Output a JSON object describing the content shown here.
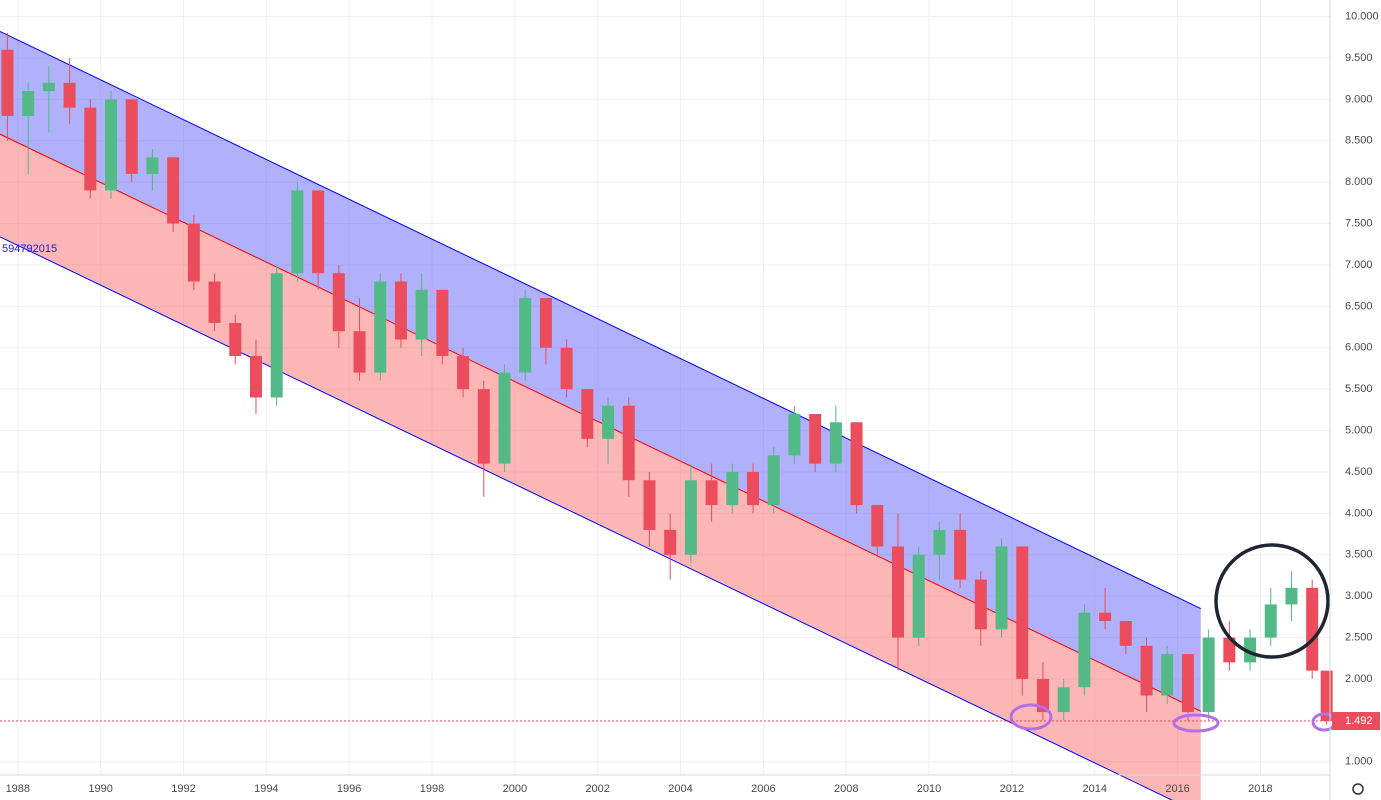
{
  "chart_data": {
    "type": "candlestick",
    "x": [
      1987.75,
      1988.25,
      1988.75,
      1989.25,
      1989.75,
      1990.25,
      1990.75,
      1991.25,
      1991.75,
      1992.25,
      1992.75,
      1993.25,
      1993.75,
      1994.25,
      1994.75,
      1995.25,
      1995.75,
      1996.25,
      1996.75,
      1997.25,
      1997.75,
      1998.25,
      1998.75,
      1999.25,
      1999.75,
      2000.25,
      2000.75,
      2001.25,
      2001.75,
      2002.25,
      2002.75,
      2003.25,
      2003.75,
      2004.25,
      2004.75,
      2005.25,
      2005.75,
      2006.25,
      2006.75,
      2007.25,
      2007.75,
      2008.25,
      2008.75,
      2009.25,
      2009.75,
      2010.25,
      2010.75,
      2011.25,
      2011.75,
      2012.25,
      2012.75,
      2013.25,
      2013.75,
      2014.25,
      2014.75,
      2015.25,
      2015.75,
      2016.25,
      2016.75,
      2017.25,
      2017.75,
      2018.25,
      2018.75,
      2019.25,
      2019.6
    ],
    "open": [
      9.6,
      8.8,
      9.1,
      9.2,
      8.9,
      7.9,
      9.0,
      8.1,
      8.3,
      7.5,
      6.8,
      6.3,
      5.9,
      5.4,
      6.9,
      7.9,
      6.9,
      6.2,
      5.7,
      6.8,
      6.1,
      6.7,
      5.9,
      5.5,
      4.6,
      5.7,
      6.6,
      6.0,
      5.5,
      4.9,
      5.3,
      4.4,
      3.8,
      3.5,
      4.4,
      4.1,
      4.5,
      4.1,
      4.7,
      5.2,
      4.6,
      5.1,
      4.1,
      3.6,
      2.5,
      3.5,
      3.8,
      3.2,
      2.6,
      3.6,
      2.0,
      1.6,
      1.9,
      2.8,
      2.7,
      2.4,
      1.8,
      2.3,
      1.6,
      2.5,
      2.2,
      2.5,
      2.9,
      3.1,
      2.1
    ],
    "high": [
      9.8,
      9.2,
      9.4,
      9.5,
      9.0,
      9.1,
      9.0,
      8.4,
      8.3,
      7.6,
      6.9,
      6.4,
      6.1,
      7.0,
      8.0,
      7.9,
      7.0,
      6.6,
      6.9,
      6.9,
      6.9,
      6.7,
      6.0,
      5.6,
      5.8,
      6.7,
      6.6,
      6.1,
      5.5,
      5.4,
      5.4,
      4.5,
      4.0,
      4.6,
      4.6,
      4.6,
      4.6,
      4.8,
      5.3,
      5.2,
      5.3,
      5.1,
      4.1,
      4.0,
      3.6,
      3.9,
      4.0,
      3.3,
      3.7,
      3.6,
      2.2,
      2.0,
      2.9,
      3.1,
      2.7,
      2.5,
      2.4,
      2.3,
      2.6,
      2.7,
      2.6,
      3.1,
      3.3,
      3.2,
      2.1
    ],
    "low": [
      8.5,
      8.1,
      8.6,
      8.7,
      7.8,
      7.8,
      8.0,
      7.9,
      7.4,
      6.7,
      6.2,
      5.8,
      5.2,
      5.3,
      6.8,
      6.7,
      6.0,
      5.6,
      5.6,
      6.0,
      5.9,
      5.8,
      5.4,
      4.2,
      4.5,
      5.6,
      5.8,
      5.4,
      4.8,
      4.6,
      4.2,
      3.6,
      3.2,
      3.4,
      3.9,
      4.0,
      4.0,
      4.0,
      4.6,
      4.5,
      4.5,
      4.0,
      3.5,
      2.1,
      2.4,
      3.2,
      3.1,
      2.4,
      2.5,
      1.8,
      1.5,
      1.5,
      1.8,
      2.6,
      2.3,
      1.6,
      1.7,
      1.5,
      1.5,
      2.1,
      2.1,
      2.4,
      2.7,
      2.0,
      1.45
    ],
    "close": [
      8.8,
      9.1,
      9.2,
      8.9,
      7.9,
      9.0,
      8.1,
      8.3,
      7.5,
      6.8,
      6.3,
      5.9,
      5.4,
      6.9,
      7.9,
      6.9,
      6.2,
      5.7,
      6.8,
      6.1,
      6.7,
      5.9,
      5.5,
      4.6,
      5.7,
      6.6,
      6.0,
      5.5,
      4.9,
      5.3,
      4.4,
      3.8,
      3.5,
      4.4,
      4.1,
      4.5,
      4.1,
      4.7,
      5.2,
      4.6,
      5.1,
      4.1,
      3.6,
      2.5,
      3.5,
      3.8,
      3.2,
      2.6,
      3.6,
      2.0,
      1.6,
      1.9,
      2.8,
      2.7,
      2.4,
      1.8,
      2.3,
      1.6,
      2.5,
      2.2,
      2.5,
      2.9,
      3.1,
      2.1,
      1.492
    ],
    "up_color": "#53b987",
    "down_color": "#eb4d5c",
    "xlim": [
      1987.57,
      2019.68
    ],
    "xticks": [
      1988,
      1990,
      1992,
      1994,
      1996,
      1998,
      2000,
      2002,
      2004,
      2006,
      2008,
      2010,
      2012,
      2014,
      2016,
      2018
    ],
    "ylim": [
      0.84,
      10.2
    ],
    "yticks": [
      {
        "value": 1,
        "label": "1.000"
      },
      {
        "value": 1.5,
        "label": "1.500"
      },
      {
        "value": 2,
        "label": "2.000"
      },
      {
        "value": 2.5,
        "label": "2.500"
      },
      {
        "value": 3,
        "label": "3.000"
      },
      {
        "value": 3.5,
        "label": "3.500"
      },
      {
        "value": 4,
        "label": "4.000"
      },
      {
        "value": 4.5,
        "label": "4.500"
      },
      {
        "value": 5,
        "label": "5.000"
      },
      {
        "value": 5.5,
        "label": "5.500"
      },
      {
        "value": 6,
        "label": "6.000"
      },
      {
        "value": 6.5,
        "label": "6.500"
      },
      {
        "value": 7,
        "label": "7.000"
      },
      {
        "value": 7.5,
        "label": "7.500"
      },
      {
        "value": 8,
        "label": "8.000"
      },
      {
        "value": 8.5,
        "label": "8.500"
      },
      {
        "value": 9,
        "label": "9.000"
      },
      {
        "value": 9.5,
        "label": "9.500"
      },
      {
        "value": 10,
        "label": "10.000"
      }
    ],
    "grid": true,
    "channel": {
      "x": [
        1987.57,
        2016.56
      ],
      "upper": [
        9.82,
        2.85
      ],
      "middle": [
        8.58,
        1.61
      ],
      "lower": [
        7.34,
        0.37
      ],
      "line_color": "#0000ff",
      "mid_color": "#ff0000",
      "upper_fill": "#6f6ff7",
      "lower_fill": "#fa7a7a"
    },
    "side_label": "594792015",
    "last_price": 1.492
  }
}
